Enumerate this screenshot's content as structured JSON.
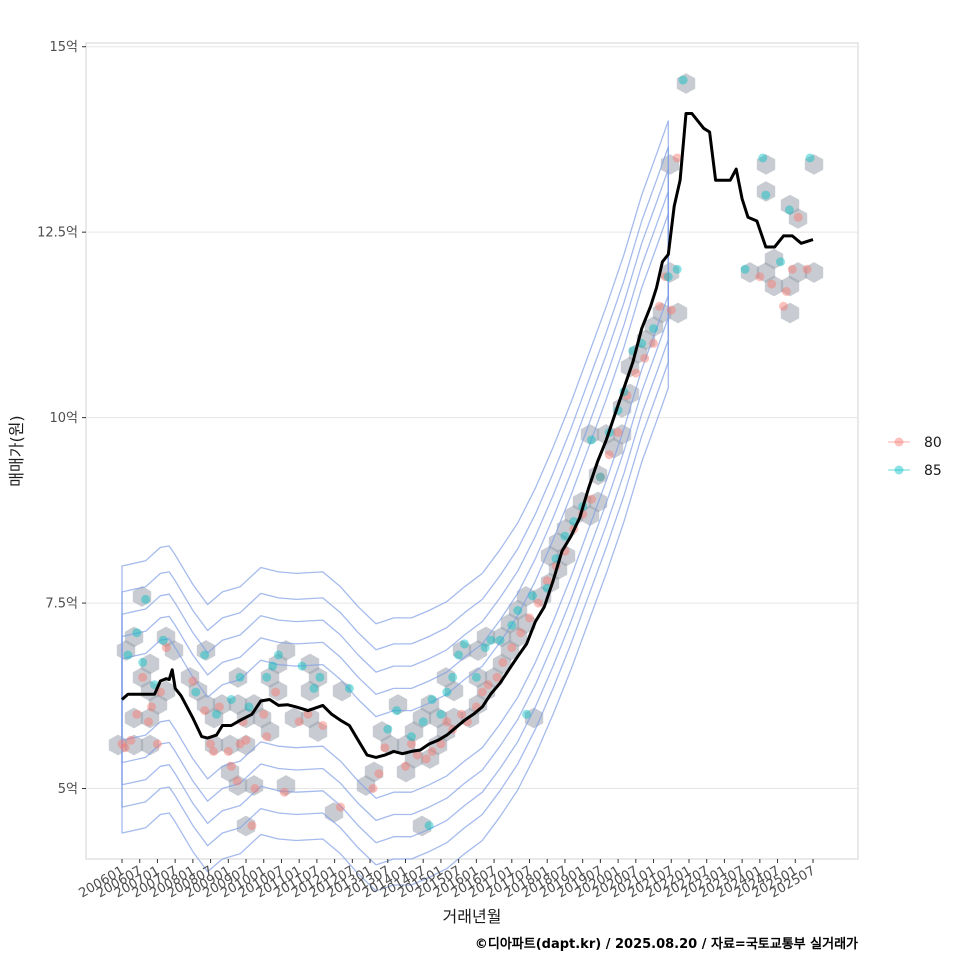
{
  "chart_data": {
    "type": "scatter",
    "xlabel": "거래년월",
    "ylabel": "매매가(원)",
    "caption": "©디아파트(dapt.kr) / 2025.08.20 / 자료=국토교통부 실거래가",
    "x_range": [
      "2006-01",
      "2025-07"
    ],
    "ylim": [
      4.05,
      15.05
    ],
    "y_ticks": [
      {
        "value": 5,
        "label": "5억"
      },
      {
        "value": 7.5,
        "label": "7.5억"
      },
      {
        "value": 10,
        "label": "10억"
      },
      {
        "value": 12.5,
        "label": "12.5억"
      },
      {
        "value": 15,
        "label": "15억"
      }
    ],
    "x_ticks": [
      "200601",
      "200607",
      "200701",
      "200707",
      "200801",
      "200807",
      "200901",
      "200907",
      "201001",
      "201007",
      "201101",
      "201107",
      "201201",
      "201207",
      "201301",
      "201307",
      "201401",
      "201407",
      "201501",
      "201507",
      "201601",
      "201607",
      "201701",
      "201707",
      "201801",
      "201807",
      "201901",
      "201907",
      "202001",
      "202007",
      "202101",
      "202107",
      "202201",
      "202207",
      "202301",
      "202307",
      "202401",
      "202407",
      "202501",
      "202507"
    ],
    "grid": true,
    "legend": {
      "position": "right",
      "entries": [
        {
          "label": "80",
          "color": "#f8766d"
        },
        {
          "label": "85",
          "color": "#00bfc4"
        }
      ]
    },
    "hexbin_color": "#9aa3ad",
    "density_contour_color": "#7f9ee6",
    "moving_average_line": [
      [
        "2006-01",
        6.2
      ],
      [
        "2006-03",
        6.27
      ],
      [
        "2006-09",
        6.27
      ],
      [
        "2006-12",
        6.27
      ],
      [
        "2007-02",
        6.45
      ],
      [
        "2007-04",
        6.48
      ],
      [
        "2007-05",
        6.47
      ],
      [
        "2007-06",
        6.6
      ],
      [
        "2007-07",
        6.35
      ],
      [
        "2007-09",
        6.25
      ],
      [
        "2008-01",
        5.95
      ],
      [
        "2008-04",
        5.7
      ],
      [
        "2008-06",
        5.68
      ],
      [
        "2008-09",
        5.72
      ],
      [
        "2008-11",
        5.85
      ],
      [
        "2009-02",
        5.85
      ],
      [
        "2009-05",
        5.92
      ],
      [
        "2009-09",
        6.0
      ],
      [
        "2009-12",
        6.18
      ],
      [
        "2010-03",
        6.2
      ],
      [
        "2010-06",
        6.12
      ],
      [
        "2010-09",
        6.13
      ],
      [
        "2010-12",
        6.1
      ],
      [
        "2011-04",
        6.05
      ],
      [
        "2011-09",
        6.12
      ],
      [
        "2011-12",
        6.0
      ],
      [
        "2012-03",
        5.92
      ],
      [
        "2012-06",
        5.85
      ],
      [
        "2012-09",
        5.65
      ],
      [
        "2012-12",
        5.45
      ],
      [
        "2013-03",
        5.42
      ],
      [
        "2013-06",
        5.45
      ],
      [
        "2013-09",
        5.5
      ],
      [
        "2013-12",
        5.47
      ],
      [
        "2014-03",
        5.5
      ],
      [
        "2014-06",
        5.52
      ],
      [
        "2014-09",
        5.6
      ],
      [
        "2014-12",
        5.65
      ],
      [
        "2015-03",
        5.72
      ],
      [
        "2015-06",
        5.82
      ],
      [
        "2015-09",
        5.92
      ],
      [
        "2015-12",
        6.0
      ],
      [
        "2016-03",
        6.1
      ],
      [
        "2016-06",
        6.28
      ],
      [
        "2016-09",
        6.42
      ],
      [
        "2016-12",
        6.6
      ],
      [
        "2017-03",
        6.78
      ],
      [
        "2017-06",
        6.95
      ],
      [
        "2017-09",
        7.25
      ],
      [
        "2017-12",
        7.45
      ],
      [
        "2018-03",
        7.8
      ],
      [
        "2018-06",
        8.2
      ],
      [
        "2018-09",
        8.4
      ],
      [
        "2018-12",
        8.65
      ],
      [
        "2019-03",
        9.05
      ],
      [
        "2019-06",
        9.4
      ],
      [
        "2019-09",
        9.7
      ],
      [
        "2019-12",
        10.05
      ],
      [
        "2020-03",
        10.4
      ],
      [
        "2020-06",
        10.75
      ],
      [
        "2020-09",
        11.2
      ],
      [
        "2020-12",
        11.5
      ],
      [
        "2021-02",
        11.75
      ],
      [
        "2021-04",
        12.1
      ],
      [
        "2021-06",
        12.2
      ],
      [
        "2021-08",
        12.85
      ],
      [
        "2021-10",
        13.2
      ],
      [
        "2021-12",
        14.1
      ],
      [
        "2022-02",
        14.1
      ],
      [
        "2022-04",
        14.0
      ],
      [
        "2022-06",
        13.9
      ],
      [
        "2022-08",
        13.85
      ],
      [
        "2022-10",
        13.2
      ],
      [
        "2022-12",
        13.2
      ],
      [
        "2023-03",
        13.2
      ],
      [
        "2023-05",
        13.35
      ],
      [
        "2023-07",
        12.95
      ],
      [
        "2023-09",
        12.7
      ],
      [
        "2023-12",
        12.65
      ],
      [
        "2024-03",
        12.3
      ],
      [
        "2024-06",
        12.3
      ],
      [
        "2024-09",
        12.45
      ],
      [
        "2024-12",
        12.45
      ],
      [
        "2025-03",
        12.35
      ],
      [
        "2025-07",
        12.4
      ]
    ],
    "series": [
      {
        "name": "80",
        "points": [
          [
            "2006-01",
            5.6
          ],
          [
            "2006-02",
            5.55
          ],
          [
            "2006-04",
            5.65
          ],
          [
            "2006-06",
            6.0
          ],
          [
            "2006-08",
            6.5
          ],
          [
            "2006-10",
            5.9
          ],
          [
            "2006-11",
            6.1
          ],
          [
            "2007-01",
            5.6
          ],
          [
            "2007-02",
            6.3
          ],
          [
            "2007-04",
            6.9
          ],
          [
            "2008-01",
            6.45
          ],
          [
            "2008-05",
            6.05
          ],
          [
            "2008-07",
            5.6
          ],
          [
            "2008-08",
            5.5
          ],
          [
            "2008-10",
            6.1
          ],
          [
            "2009-01",
            5.5
          ],
          [
            "2009-02",
            5.3
          ],
          [
            "2009-04",
            5.1
          ],
          [
            "2009-05",
            5.6
          ],
          [
            "2009-06",
            5.9
          ],
          [
            "2009-07",
            5.65
          ],
          [
            "2009-09",
            4.5
          ],
          [
            "2009-10",
            5.0
          ],
          [
            "2010-01",
            6.0
          ],
          [
            "2010-02",
            5.7
          ],
          [
            "2010-05",
            6.3
          ],
          [
            "2010-08",
            4.95
          ],
          [
            "2011-01",
            5.9
          ],
          [
            "2011-04",
            6.0
          ],
          [
            "2011-09",
            5.85
          ],
          [
            "2012-03",
            4.75
          ],
          [
            "2013-02",
            5.0
          ],
          [
            "2013-04",
            5.2
          ],
          [
            "2013-06",
            5.55
          ],
          [
            "2014-01",
            5.3
          ],
          [
            "2014-03",
            5.6
          ],
          [
            "2014-05",
            5.45
          ],
          [
            "2014-08",
            5.4
          ],
          [
            "2014-10",
            5.5
          ],
          [
            "2015-01",
            5.6
          ],
          [
            "2015-03",
            5.9
          ],
          [
            "2015-05",
            5.8
          ],
          [
            "2015-08",
            6.0
          ],
          [
            "2015-10",
            5.9
          ],
          [
            "2016-01",
            6.1
          ],
          [
            "2016-03",
            6.3
          ],
          [
            "2016-05",
            6.4
          ],
          [
            "2016-08",
            6.5
          ],
          [
            "2016-10",
            6.7
          ],
          [
            "2017-01",
            6.9
          ],
          [
            "2017-04",
            7.1
          ],
          [
            "2017-07",
            7.3
          ],
          [
            "2017-10",
            7.5
          ],
          [
            "2018-01",
            7.8
          ],
          [
            "2018-04",
            8.0
          ],
          [
            "2018-07",
            8.2
          ],
          [
            "2018-10",
            8.5
          ],
          [
            "2019-01",
            8.7
          ],
          [
            "2019-04",
            8.9
          ],
          [
            "2019-07",
            9.2
          ],
          [
            "2019-10",
            9.5
          ],
          [
            "2020-01",
            9.8
          ],
          [
            "2020-04",
            10.3
          ],
          [
            "2020-07",
            10.6
          ],
          [
            "2020-10",
            10.8
          ],
          [
            "2021-01",
            11.0
          ],
          [
            "2021-03",
            11.5
          ],
          [
            "2021-05",
            11.9
          ],
          [
            "2021-07",
            11.45
          ],
          [
            "2021-09",
            13.5
          ],
          [
            "2024-01",
            11.9
          ],
          [
            "2024-05",
            11.8
          ],
          [
            "2024-09",
            11.5
          ],
          [
            "2024-10",
            11.7
          ],
          [
            "2024-12",
            12.0
          ],
          [
            "2025-02",
            12.7
          ],
          [
            "2025-05",
            12.0
          ]
        ]
      },
      {
        "name": "85",
        "points": [
          [
            "2006-03",
            6.8
          ],
          [
            "2006-06",
            7.1
          ],
          [
            "2006-08",
            6.7
          ],
          [
            "2006-09",
            7.55
          ],
          [
            "2006-12",
            6.4
          ],
          [
            "2007-03",
            7.0
          ],
          [
            "2008-02",
            6.3
          ],
          [
            "2008-05",
            6.8
          ],
          [
            "2008-09",
            6.0
          ],
          [
            "2009-02",
            6.2
          ],
          [
            "2009-05",
            6.5
          ],
          [
            "2009-08",
            6.1
          ],
          [
            "2010-02",
            6.5
          ],
          [
            "2010-04",
            6.65
          ],
          [
            "2010-06",
            6.8
          ],
          [
            "2011-02",
            6.65
          ],
          [
            "2011-06",
            6.35
          ],
          [
            "2011-08",
            6.5
          ],
          [
            "2012-06",
            6.35
          ],
          [
            "2013-07",
            5.8
          ],
          [
            "2013-10",
            6.05
          ],
          [
            "2014-03",
            5.7
          ],
          [
            "2014-07",
            5.9
          ],
          [
            "2014-09",
            4.5
          ],
          [
            "2014-10",
            6.2
          ],
          [
            "2015-01",
            6.0
          ],
          [
            "2015-03",
            6.3
          ],
          [
            "2015-05",
            6.5
          ],
          [
            "2015-07",
            6.8
          ],
          [
            "2015-09",
            6.95
          ],
          [
            "2016-01",
            6.5
          ],
          [
            "2016-04",
            6.9
          ],
          [
            "2016-06",
            7.0
          ],
          [
            "2016-09",
            7.0
          ],
          [
            "2017-01",
            7.2
          ],
          [
            "2017-03",
            7.4
          ],
          [
            "2017-06",
            6.0
          ],
          [
            "2017-08",
            7.6
          ],
          [
            "2018-01",
            7.7
          ],
          [
            "2018-04",
            8.1
          ],
          [
            "2018-07",
            8.4
          ],
          [
            "2018-10",
            8.6
          ],
          [
            "2019-01",
            8.8
          ],
          [
            "2019-04",
            9.7
          ],
          [
            "2019-07",
            9.2
          ],
          [
            "2019-10",
            9.8
          ],
          [
            "2020-01",
            10.1
          ],
          [
            "2020-03",
            10.35
          ],
          [
            "2020-06",
            10.9
          ],
          [
            "2020-09",
            11.0
          ],
          [
            "2021-01",
            11.2
          ],
          [
            "2021-06",
            11.9
          ],
          [
            "2021-09",
            12.0
          ],
          [
            "2021-11",
            14.55
          ],
          [
            "2023-08",
            12.0
          ],
          [
            "2024-02",
            13.5
          ],
          [
            "2024-03",
            13.0
          ],
          [
            "2024-08",
            12.1
          ],
          [
            "2024-11",
            12.8
          ],
          [
            "2025-06",
            13.5
          ]
        ]
      }
    ]
  }
}
